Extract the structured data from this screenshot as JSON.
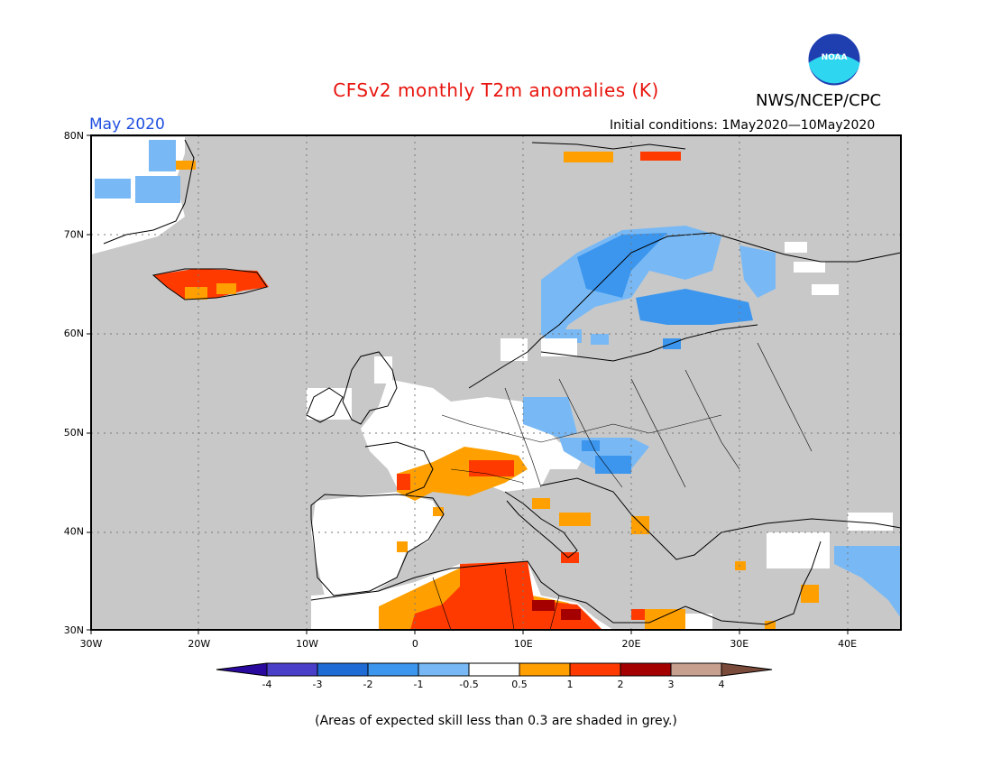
{
  "header": {
    "title": "CFSv2 monthly T2m anomalies (K)",
    "organization": "NWS/NCEP/CPC",
    "valid_month": "May 2020",
    "initial_conditions": "Initial conditions: 1May2020—10May2020"
  },
  "logo": {
    "text": "NOAA",
    "icon": "noaa-logo-icon"
  },
  "map": {
    "region": "Europe",
    "lat_labels": [
      "80N",
      "70N",
      "60N",
      "50N",
      "40N",
      "30N"
    ],
    "lon_labels": [
      "30W",
      "20W",
      "10W",
      "0",
      "10E",
      "20E",
      "30E",
      "40E"
    ],
    "background_color": "#c8c8c8"
  },
  "colorbar": {
    "colors": [
      "#2a0a9e",
      "#4a3fc9",
      "#1e6bd6",
      "#3c96ee",
      "#78b9f5",
      "#ffffff",
      "#ffa000",
      "#ff3a00",
      "#a50000",
      "#c8a090",
      "#7a4a3a"
    ],
    "tick_labels": [
      "-4",
      "-3",
      "-2",
      "-1",
      "-0.5",
      "0.5",
      "1",
      "2",
      "3",
      "4"
    ]
  },
  "caption": "(Areas of expected skill less than 0.3 are shaded in grey.)"
}
